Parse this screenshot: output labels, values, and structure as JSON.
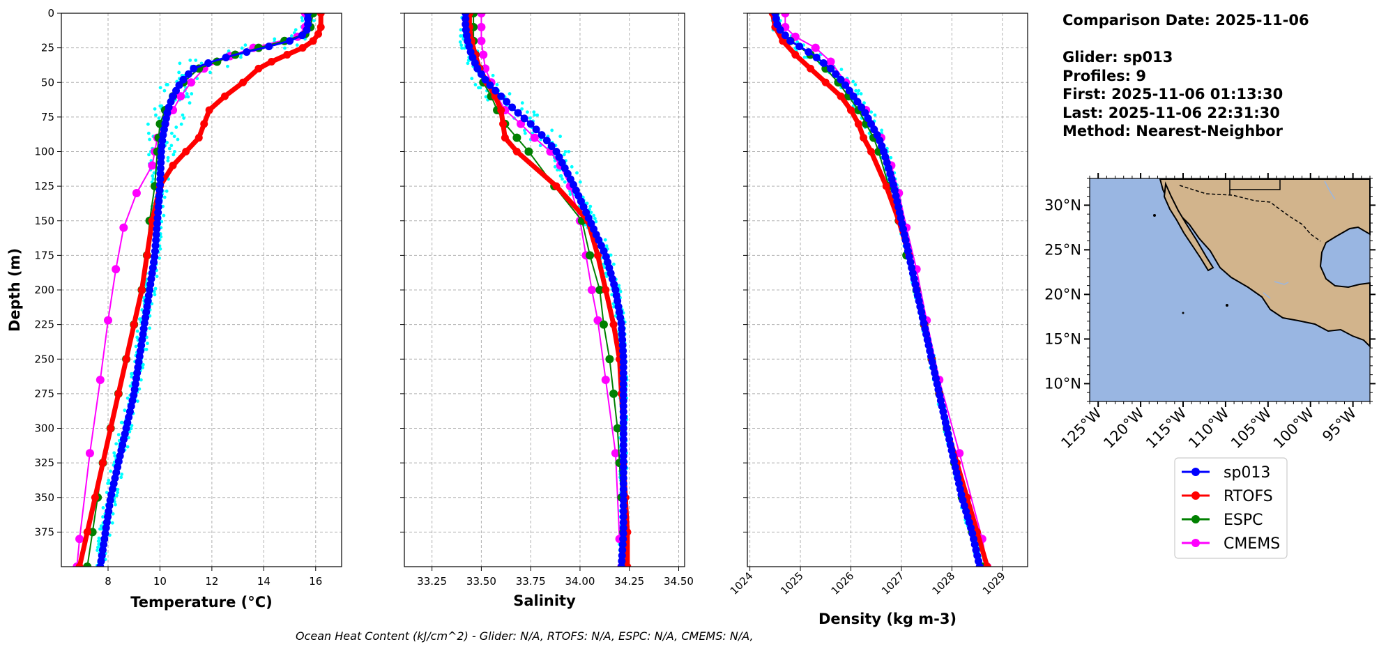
{
  "info": {
    "comparison_date": "Comparison Date: 2025-11-06",
    "glider": "Glider: sp013",
    "profiles": "Profiles: 9",
    "first": "First: 2025-11-06 01:13:30",
    "last": "Last: 2025-11-06 22:31:30",
    "method": "Method: Nearest-Neighbor"
  },
  "footer": "Ocean Heat Content (kJ/cm^2) - Glider: N/A,  RTOFS: N/A,  ESPC: N/A,  CMEMS: N/A,",
  "colors": {
    "sp013": "#0000ff",
    "RTOFS": "#ff0000",
    "ESPC": "#008000",
    "CMEMS": "#ff00ff",
    "raw": "#00ffff",
    "ocean": "#99b6e2",
    "land": "#d2b48c"
  },
  "legend": [
    {
      "name": "sp013",
      "color": "#0000ff"
    },
    {
      "name": "RTOFS",
      "color": "#ff0000"
    },
    {
      "name": "ESPC",
      "color": "#008000"
    },
    {
      "name": "CMEMS",
      "color": "#ff00ff"
    }
  ],
  "map": {
    "lat_labels": [
      "30°N",
      "25°N",
      "20°N",
      "15°N",
      "10°N"
    ],
    "lon_labels": [
      "125°W",
      "120°W",
      "115°W",
      "110°W",
      "105°W",
      "100°W",
      "95°W"
    ],
    "lat_values": [
      30,
      25,
      20,
      15,
      10
    ],
    "lon_values": [
      -125,
      -120,
      -115,
      -110,
      -105,
      -100,
      -95
    ],
    "extent": {
      "lon": [
        -126,
        -93
      ],
      "lat": [
        8,
        33
      ]
    }
  },
  "chart_data": [
    {
      "type": "line",
      "id": "temperature",
      "xlabel": "Temperature (°C)",
      "ylabel": "Depth (m)",
      "xlim": [
        6.2,
        17.0
      ],
      "ylim": [
        0,
        400
      ],
      "xticks": [
        8,
        10,
        12,
        14,
        16
      ],
      "yticks": [
        0,
        25,
        50,
        75,
        100,
        125,
        150,
        175,
        200,
        225,
        250,
        275,
        300,
        325,
        350,
        375
      ],
      "series": [
        {
          "name": "RTOFS",
          "depth": [
            0,
            10,
            15,
            20,
            25,
            30,
            35,
            40,
            50,
            60,
            70,
            80,
            90,
            100,
            110,
            125,
            150,
            175,
            200,
            225,
            250,
            275,
            300,
            325,
            350,
            375,
            400
          ],
          "values": [
            16.2,
            16.2,
            16.1,
            15.9,
            15.5,
            14.9,
            14.3,
            13.8,
            13.2,
            12.5,
            11.9,
            11.7,
            11.5,
            11.0,
            10.5,
            10.0,
            9.7,
            9.5,
            9.3,
            9.0,
            8.7,
            8.4,
            8.1,
            7.8,
            7.5,
            7.2,
            6.9
          ]
        },
        {
          "name": "ESPC",
          "depth": [
            0,
            10,
            15,
            20,
            25,
            30,
            35,
            40,
            50,
            60,
            70,
            80,
            90,
            100,
            125,
            150,
            175,
            200,
            225,
            250,
            275,
            300,
            325,
            350,
            375,
            400
          ],
          "values": [
            15.9,
            15.8,
            15.6,
            14.8,
            13.8,
            12.9,
            12.2,
            11.5,
            10.9,
            10.5,
            10.2,
            10.0,
            9.95,
            9.9,
            9.8,
            9.6,
            9.5,
            9.3,
            9.0,
            8.7,
            8.4,
            8.1,
            7.8,
            7.6,
            7.4,
            7.2
          ]
        },
        {
          "name": "CMEMS",
          "depth": [
            0,
            10,
            17,
            25,
            31,
            40,
            50,
            60,
            70,
            80,
            90,
            100,
            110,
            130,
            155,
            185,
            222,
            265,
            318,
            380,
            400
          ],
          "values": [
            15.6,
            15.6,
            15.3,
            13.6,
            12.7,
            11.7,
            11.2,
            10.8,
            10.5,
            10.2,
            9.9,
            9.8,
            9.7,
            9.1,
            8.6,
            8.3,
            8.0,
            7.7,
            7.3,
            6.9,
            6.8
          ]
        },
        {
          "name": "sp013",
          "depth": [
            0,
            10,
            15,
            20,
            25,
            30,
            35,
            40,
            50,
            60,
            70,
            80,
            90,
            100,
            125,
            150,
            175,
            200,
            225,
            250,
            275,
            300,
            325,
            350,
            375,
            400
          ],
          "values": [
            15.7,
            15.7,
            15.6,
            15.0,
            14.0,
            12.9,
            12.0,
            11.3,
            10.8,
            10.5,
            10.3,
            10.2,
            10.1,
            10.05,
            10.0,
            9.9,
            9.8,
            9.6,
            9.4,
            9.2,
            9.0,
            8.7,
            8.4,
            8.1,
            7.9,
            7.7
          ]
        }
      ]
    },
    {
      "type": "line",
      "id": "salinity",
      "xlabel": "Salinity",
      "ylabel": "",
      "xlim": [
        33.11,
        34.53
      ],
      "ylim": [
        0,
        400
      ],
      "xticks": [
        33.25,
        33.5,
        33.75,
        34.0,
        34.25,
        34.5
      ],
      "series": [
        {
          "name": "RTOFS",
          "depth": [
            0,
            10,
            20,
            30,
            40,
            50,
            60,
            70,
            80,
            90,
            100,
            125,
            150,
            175,
            200,
            225,
            250,
            275,
            300,
            325,
            350,
            375,
            400
          ],
          "values": [
            33.44,
            33.44,
            33.45,
            33.47,
            33.49,
            33.53,
            33.57,
            33.6,
            33.61,
            33.62,
            33.68,
            33.88,
            34.04,
            34.09,
            34.13,
            34.17,
            34.2,
            34.21,
            34.22,
            34.22,
            34.23,
            34.24,
            34.24
          ]
        },
        {
          "name": "ESPC",
          "depth": [
            0,
            10,
            20,
            30,
            40,
            50,
            60,
            70,
            80,
            90,
            100,
            125,
            150,
            175,
            200,
            225,
            250,
            275,
            300,
            325,
            350,
            375,
            400
          ],
          "values": [
            33.46,
            33.46,
            33.46,
            33.47,
            33.49,
            33.51,
            33.55,
            33.58,
            33.62,
            33.68,
            33.74,
            33.87,
            34.01,
            34.05,
            34.1,
            34.12,
            34.15,
            34.17,
            34.19,
            34.2,
            34.21,
            34.22,
            34.22
          ]
        },
        {
          "name": "CMEMS",
          "depth": [
            0,
            10,
            20,
            30,
            40,
            50,
            60,
            70,
            80,
            90,
            100,
            110,
            125,
            150,
            175,
            200,
            222,
            265,
            318,
            380,
            400
          ],
          "values": [
            33.5,
            33.5,
            33.5,
            33.51,
            33.52,
            33.55,
            33.58,
            33.62,
            33.7,
            33.77,
            33.85,
            33.9,
            33.95,
            34.0,
            34.03,
            34.06,
            34.09,
            34.13,
            34.18,
            34.2,
            34.21
          ]
        },
        {
          "name": "sp013",
          "depth": [
            0,
            10,
            20,
            30,
            40,
            50,
            60,
            70,
            80,
            90,
            100,
            125,
            150,
            175,
            200,
            225,
            250,
            275,
            300,
            325,
            350,
            375,
            400
          ],
          "values": [
            33.42,
            33.42,
            33.43,
            33.45,
            33.48,
            33.53,
            33.6,
            33.67,
            33.75,
            33.82,
            33.88,
            33.97,
            34.05,
            34.13,
            34.18,
            34.21,
            34.22,
            34.22,
            34.22,
            34.22,
            34.22,
            34.22,
            34.21
          ]
        }
      ]
    },
    {
      "type": "line",
      "id": "density",
      "xlabel": "Density (kg m-3)",
      "ylabel": "",
      "xlim": [
        1023.95,
        1029.5
      ],
      "ylim": [
        0,
        400
      ],
      "xticks": [
        1024,
        1025,
        1026,
        1027,
        1028,
        1029
      ],
      "series": [
        {
          "name": "RTOFS",
          "depth": [
            0,
            10,
            20,
            30,
            40,
            50,
            60,
            70,
            80,
            90,
            100,
            125,
            150,
            175,
            200,
            225,
            250,
            275,
            300,
            325,
            350,
            375,
            400
          ],
          "values": [
            1024.45,
            1024.5,
            1024.65,
            1024.9,
            1025.2,
            1025.5,
            1025.8,
            1026.0,
            1026.15,
            1026.25,
            1026.4,
            1026.7,
            1026.95,
            1027.15,
            1027.3,
            1027.45,
            1027.6,
            1027.75,
            1027.9,
            1028.1,
            1028.3,
            1028.5,
            1028.7
          ]
        },
        {
          "name": "ESPC",
          "depth": [
            0,
            10,
            20,
            30,
            40,
            50,
            60,
            70,
            80,
            90,
            100,
            125,
            150,
            175,
            200,
            225,
            250,
            275,
            300,
            325,
            350,
            375,
            400
          ],
          "values": [
            1024.5,
            1024.55,
            1024.8,
            1025.2,
            1025.5,
            1025.75,
            1025.95,
            1026.15,
            1026.3,
            1026.45,
            1026.55,
            1026.75,
            1026.95,
            1027.1,
            1027.3,
            1027.45,
            1027.6,
            1027.75,
            1027.9,
            1028.05,
            1028.2,
            1028.4,
            1028.6
          ]
        },
        {
          "name": "CMEMS",
          "depth": [
            0,
            10,
            17,
            25,
            35,
            50,
            70,
            90,
            110,
            130,
            155,
            185,
            222,
            265,
            318,
            380,
            400
          ],
          "values": [
            1024.7,
            1024.7,
            1024.9,
            1025.3,
            1025.6,
            1025.9,
            1026.3,
            1026.6,
            1026.8,
            1026.95,
            1027.1,
            1027.3,
            1027.5,
            1027.75,
            1028.15,
            1028.6,
            1028.7
          ]
        },
        {
          "name": "sp013",
          "depth": [
            0,
            10,
            20,
            30,
            40,
            50,
            60,
            70,
            80,
            90,
            100,
            125,
            150,
            175,
            200,
            225,
            250,
            275,
            300,
            325,
            350,
            375,
            400
          ],
          "values": [
            1024.5,
            1024.55,
            1024.8,
            1025.25,
            1025.6,
            1025.85,
            1026.05,
            1026.25,
            1026.4,
            1026.55,
            1026.65,
            1026.85,
            1027.0,
            1027.15,
            1027.3,
            1027.45,
            1027.6,
            1027.75,
            1027.9,
            1028.05,
            1028.2,
            1028.4,
            1028.55
          ]
        }
      ]
    }
  ]
}
